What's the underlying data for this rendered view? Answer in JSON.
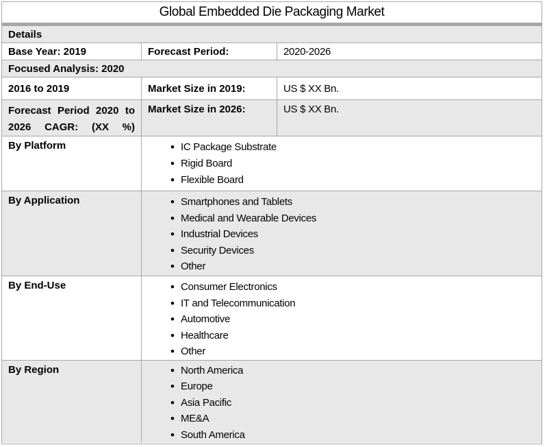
{
  "title": "Global Embedded Die Packaging Market",
  "table": {
    "details_header": "Details",
    "base_year": "Base Year: 2019",
    "forecast_period_label": "Forecast Period:",
    "forecast_period_value": "2020-2026",
    "focused_analysis": "Focused Analysis: 2020",
    "historical_period": "2016 to 2019",
    "market_size_2019_label": "Market Size in 2019:",
    "market_size_2019_value": "US $ XX Bn.",
    "cagr_label": "Forecast Period 2020 to 2026 CAGR: (XX %)",
    "market_size_2026_label": "Market Size in 2026:",
    "market_size_2026_value": "US $ XX Bn.",
    "segments": [
      {
        "label": "By Platform",
        "items": [
          "IC Package Substrate",
          "Rigid Board",
          "Flexible Board"
        ]
      },
      {
        "label": "By Application",
        "items": [
          "Smartphones and Tablets",
          "Medical and Wearable Devices",
          "Industrial Devices",
          "Security Devices",
          "Other"
        ]
      },
      {
        "label": "By End-Use",
        "items": [
          "Consumer Electronics",
          "IT and Telecommunication",
          "Automotive",
          "Healthcare",
          "Other"
        ]
      },
      {
        "label": "By Region",
        "items": [
          "North America",
          "Europe",
          "Asia Pacific",
          "ME&A",
          "South America"
        ]
      }
    ],
    "colors": {
      "shaded_row_bg": "#e8e8e8",
      "border": "#a6a6a6",
      "title_band": "#a6a6a6",
      "text": "#000000"
    }
  }
}
